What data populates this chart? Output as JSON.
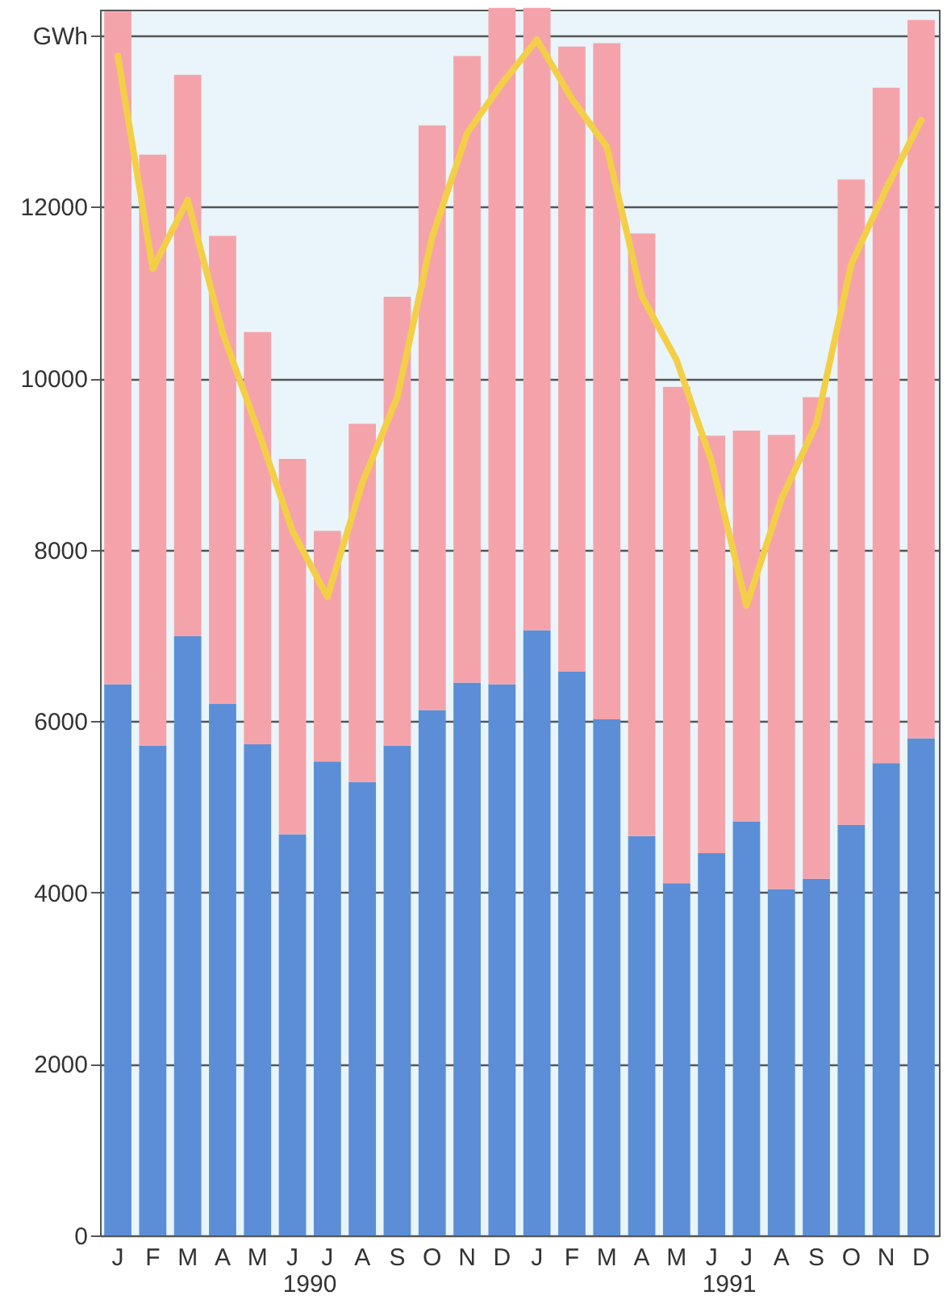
{
  "chart_data": {
    "type": "bar",
    "stacked": true,
    "categories": [
      "J",
      "F",
      "M",
      "A",
      "M",
      "J",
      "J",
      "A",
      "S",
      "O",
      "N",
      "D",
      "J",
      "F",
      "M",
      "A",
      "M",
      "J",
      "J",
      "A",
      "S",
      "O",
      "N",
      "D"
    ],
    "series": [
      {
        "color": "#5b8ed6",
        "values": [
          6430,
          5710,
          6990,
          6200,
          5730,
          4680,
          5530,
          5290,
          5710,
          6130,
          6450,
          6430,
          7060,
          6580,
          6020,
          4660,
          4110,
          4460,
          4830,
          4040,
          4160,
          4790,
          5510,
          5800
        ]
      },
      {
        "color": "#f5a3aa",
        "values": [
          7850,
          6900,
          6550,
          5460,
          4810,
          4380,
          2690,
          4180,
          5240,
          6820,
          7310,
          7890,
          7260,
          7290,
          7890,
          7030,
          5790,
          4870,
          4560,
          5300,
          5620,
          7530,
          7880,
          8380
        ]
      },
      {
        "type": "line",
        "color": "#f3cf48",
        "values": [
          13760,
          11280,
          12080,
          10530,
          9410,
          8220,
          7450,
          8780,
          9780,
          11650,
          12860,
          13440,
          13950,
          13260,
          12700,
          10960,
          10210,
          9030,
          7350,
          8590,
          9470,
          11330,
          12210,
          13010
        ]
      }
    ],
    "ylim": [
      0,
      14300
    ],
    "yticks": [
      0,
      2000,
      4000,
      6000,
      8000,
      10000,
      12000,
      {
        "value": 14000,
        "label": "GWh"
      }
    ],
    "grid": "y",
    "annotations": [
      "1990",
      "1991"
    ]
  }
}
